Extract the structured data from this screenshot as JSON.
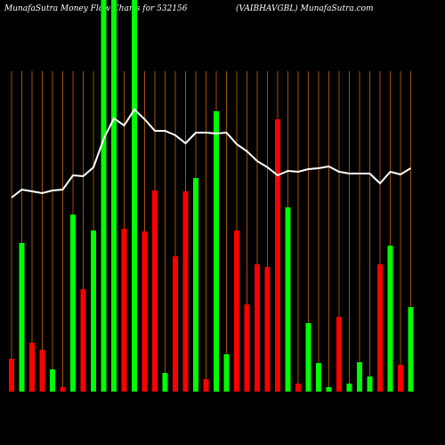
{
  "chart_data": {
    "type": "bar",
    "title": "MunafaSutra  Money Flow  Charts for 532156",
    "subtitle": "(VAIBHAVGBL) MunafaSutra.com",
    "categories": [
      null,
      null,
      null,
      null,
      null,
      null,
      null,
      null,
      null,
      null,
      null,
      null,
      null,
      null,
      null,
      null,
      null,
      null,
      null,
      null,
      null,
      null,
      null,
      null,
      null,
      null,
      null,
      null,
      null,
      null,
      null,
      null,
      null,
      null,
      null,
      null,
      null,
      null,
      null,
      null
    ],
    "series": [
      {
        "color": "#00ff00",
        "colors_by_point": [
          "#ff0000",
          "#00ff00",
          "#ff0000",
          "#ff0000",
          "#00ff00",
          "#ff0000",
          "#00ff00",
          "#ff0000",
          "#00ff00",
          "#00ff00",
          "#00ff00",
          "#ff0000",
          "#00ff00",
          "#ff0000",
          "#ff0000",
          "#00ff00",
          "#ff0000",
          "#ff0000",
          "#00ff00",
          "#ff0000",
          "#00ff00",
          "#00ff00",
          "#ff0000",
          "#ff0000",
          "#ff0000",
          "#ff0000",
          "#ff0000",
          "#00ff00",
          "#ff0000",
          "#00ff00",
          "#00ff00",
          "#00ff00",
          "#ff0000",
          "#00ff00",
          "#00ff00",
          "#00ff00",
          "#ff0000",
          "#00ff00",
          "#ff0000",
          "#00ff00"
        ],
        "values": [
          37,
          167,
          55,
          47,
          25,
          5,
          199,
          115,
          181,
          440,
          440,
          183,
          440,
          180,
          226,
          21,
          152,
          225,
          240,
          14,
          315,
          42,
          181,
          98,
          143,
          140,
          306,
          207,
          9,
          77,
          32,
          5,
          84,
          9,
          33,
          17,
          143,
          164,
          30,
          95
        ]
      },
      {
        "type": "line",
        "color": "#ffffff",
        "values": [
          218,
          227,
          225,
          223,
          226,
          227,
          243,
          242,
          252,
          284,
          307,
          299,
          317,
          306,
          293,
          293,
          288,
          279,
          291,
          291,
          290,
          291,
          278,
          270,
          259,
          252,
          243,
          248,
          247,
          250,
          251,
          253,
          247,
          245,
          245,
          245,
          234,
          247,
          244,
          251
        ]
      }
    ],
    "ylim": [
      0,
      440
    ]
  }
}
